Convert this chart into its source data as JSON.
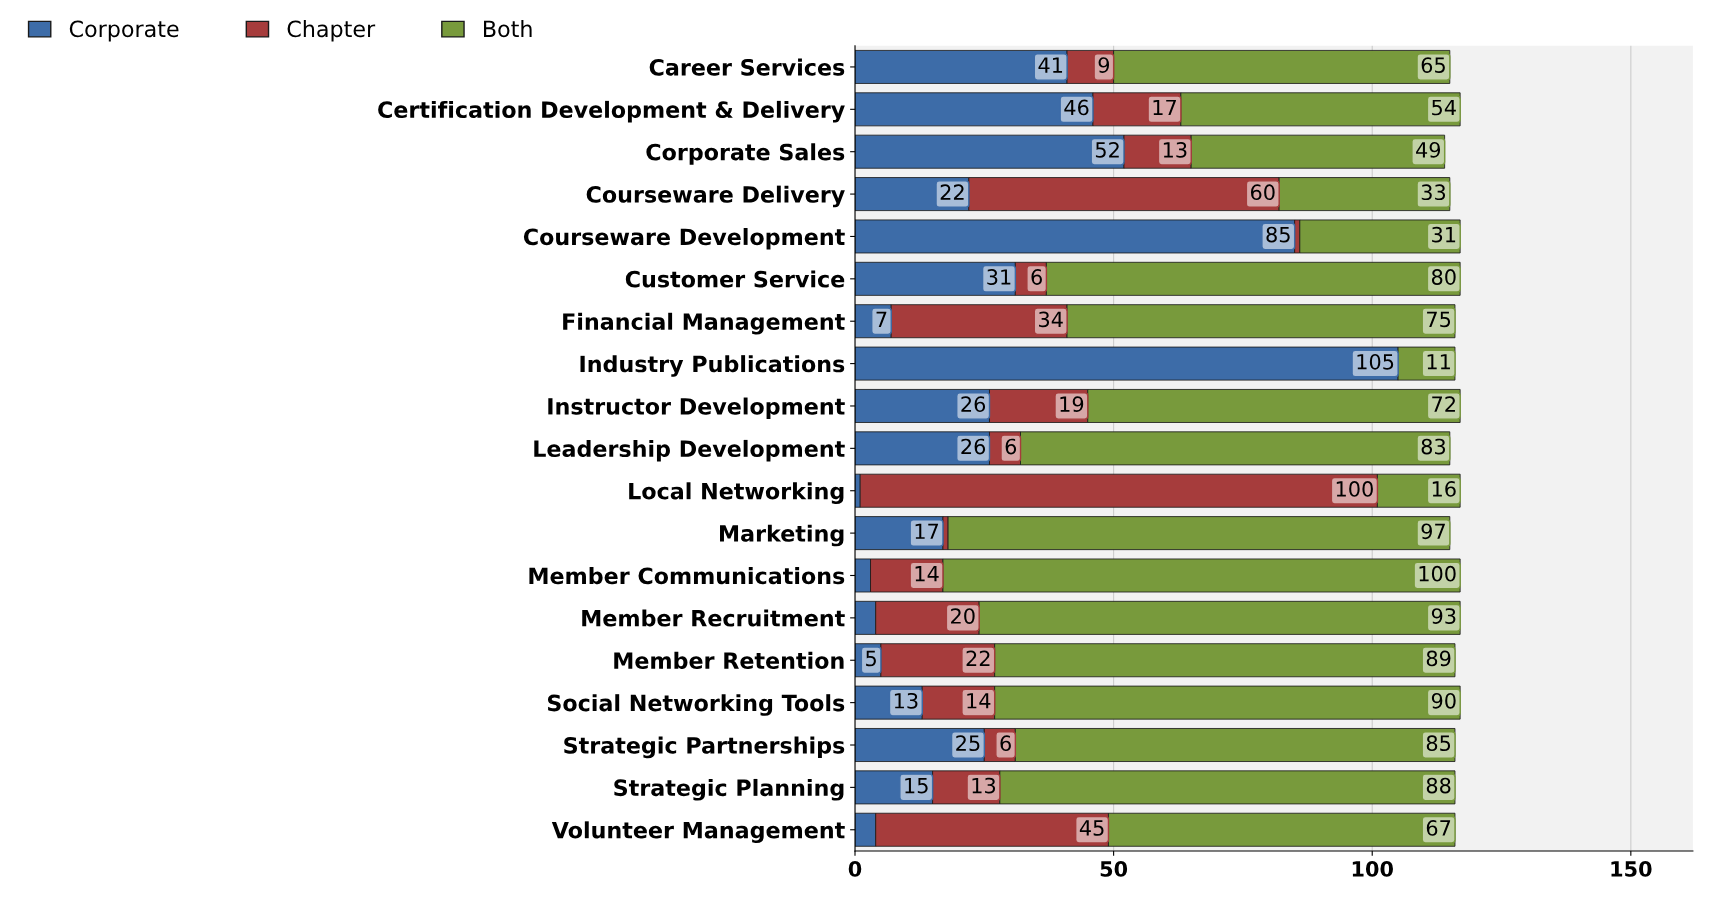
{
  "chart_data": {
    "type": "bar",
    "orientation": "horizontal",
    "stacked": true,
    "categories": [
      "Career Services",
      "Certification Development & Delivery",
      "Corporate Sales",
      "Courseware Delivery",
      "Courseware Development",
      "Customer Service",
      "Financial Management",
      "Industry Publications",
      "Instructor Development",
      "Leadership Development",
      "Local Networking",
      "Marketing",
      "Member Communications",
      "Member Recruitment",
      "Member Retention",
      "Social Networking Tools",
      "Strategic Partnerships",
      "Strategic Planning",
      "Volunteer Management"
    ],
    "series": [
      {
        "name": "Corporate",
        "color": "#3d6ca8",
        "values": [
          41,
          46,
          52,
          22,
          85,
          31,
          7,
          105,
          26,
          26,
          1,
          17,
          3,
          4,
          5,
          13,
          25,
          15,
          4
        ],
        "value_labels": [
          "41",
          "46",
          "52",
          "22",
          "85",
          "31",
          "7",
          "105",
          "26",
          "26",
          null,
          "17",
          null,
          null,
          "5",
          "13",
          "25",
          "15",
          null
        ]
      },
      {
        "name": "Chapter",
        "color": "#a63c3c",
        "values": [
          9,
          17,
          13,
          60,
          1,
          6,
          34,
          null,
          19,
          6,
          100,
          1,
          14,
          20,
          22,
          14,
          6,
          13,
          45
        ],
        "value_labels": [
          "9",
          "17",
          "13",
          "60",
          null,
          "6",
          "34",
          null,
          "19",
          "6",
          "100",
          null,
          "14",
          "20",
          "22",
          "14",
          "6",
          "13",
          "45"
        ]
      },
      {
        "name": "Both",
        "color": "#789a3c",
        "values": [
          65,
          54,
          49,
          33,
          31,
          80,
          75,
          11,
          72,
          83,
          16,
          97,
          100,
          93,
          89,
          90,
          85,
          88,
          67
        ],
        "value_labels": [
          "65",
          "54",
          "49",
          "33",
          "31",
          "80",
          "75",
          "11",
          "72",
          "83",
          "16",
          "97",
          "100",
          "93",
          "89",
          "90",
          "85",
          "88",
          "67"
        ]
      }
    ],
    "xlim": [
      0,
      162
    ],
    "xticks": [
      0,
      50,
      100,
      150
    ],
    "grid": "x",
    "legend": "top left"
  }
}
